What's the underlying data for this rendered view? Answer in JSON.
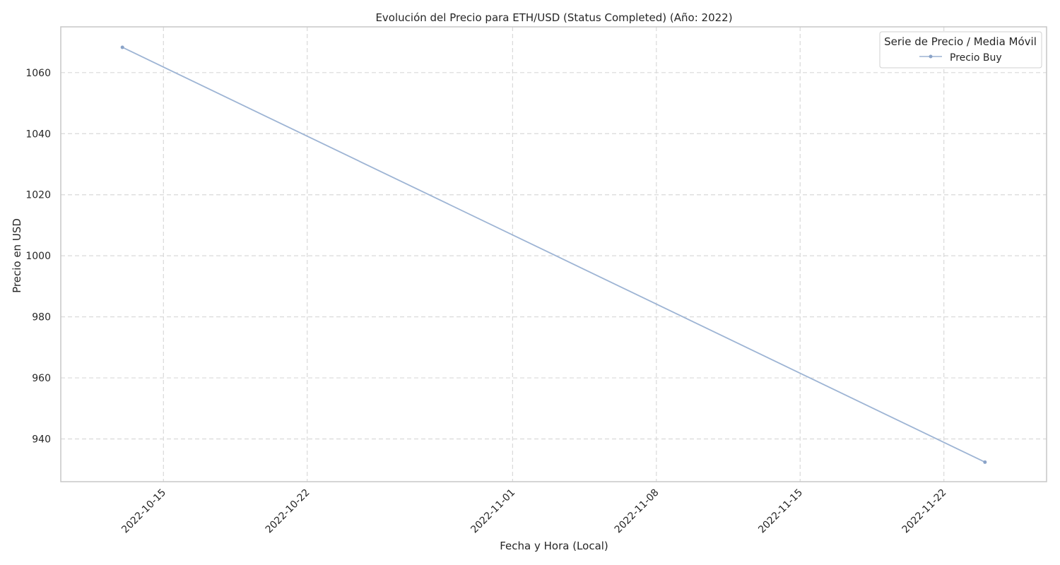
{
  "chart_data": {
    "type": "line",
    "title": "Evolución del Precio para ETH/USD (Status Completed) (Año: 2022)",
    "xlabel": "Fecha y Hora (Local)",
    "ylabel": "Precio en USD",
    "xlim": [
      "2022-10-10",
      "2022-11-27"
    ],
    "ylim": [
      926,
      1075
    ],
    "x_ticks": [
      "2022-10-15",
      "2022-10-22",
      "2022-11-01",
      "2022-11-08",
      "2022-11-15",
      "2022-11-22"
    ],
    "y_ticks": [
      940,
      960,
      980,
      1000,
      1020,
      1040,
      1060
    ],
    "grid": true,
    "legend_position": "top-right",
    "legend_title": "Serie de Precio / Media Móvil",
    "series": [
      {
        "name": "Precio Buy",
        "color": "#9db4d4",
        "marker_color": "#8aa3c8",
        "x": [
          "2022-10-13",
          "2022-11-24"
        ],
        "y": [
          1068.3,
          932.4
        ]
      }
    ]
  }
}
